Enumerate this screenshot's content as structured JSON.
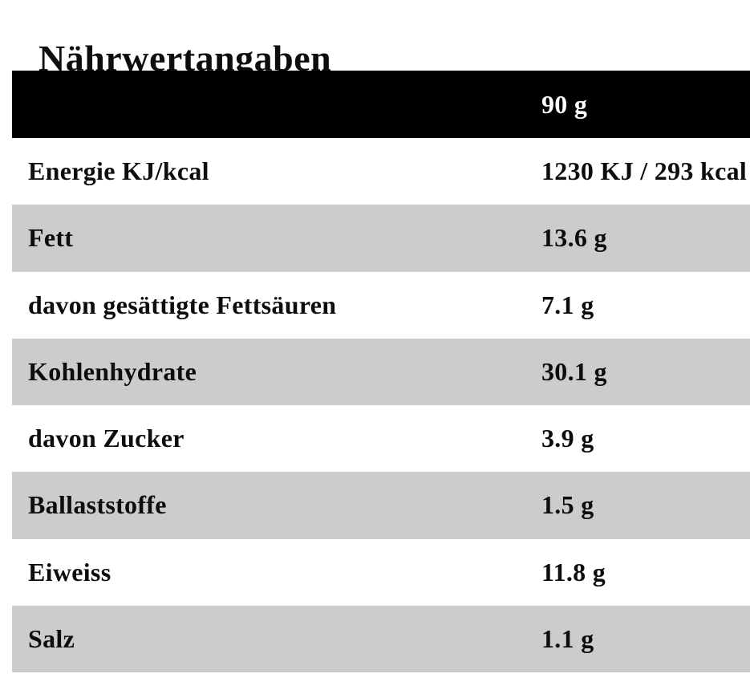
{
  "page": {
    "title": "Nährwertangaben"
  },
  "table": {
    "header": {
      "label": "",
      "portion": "90 g"
    },
    "rows": [
      {
        "label": "Energie KJ/kcal",
        "value": "1230 KJ / 293 kcal"
      },
      {
        "label": "Fett",
        "value": "13.6 g"
      },
      {
        "label": "davon gesättigte Fettsäuren",
        "value": "7.1 g"
      },
      {
        "label": "Kohlenhydrate",
        "value": "30.1 g"
      },
      {
        "label": "davon Zucker",
        "value": "3.9 g"
      },
      {
        "label": "Ballaststoffe",
        "value": "1.5 g"
      },
      {
        "label": "Eiweiss",
        "value": "11.8 g"
      },
      {
        "label": "Salz",
        "value": "1.1 g"
      }
    ],
    "colors": {
      "header_bg": "#000000",
      "header_text": "#ffffff",
      "row_bg": "#ffffff",
      "row_alt_bg": "#cccccc",
      "text": "#0d0d0d"
    }
  }
}
